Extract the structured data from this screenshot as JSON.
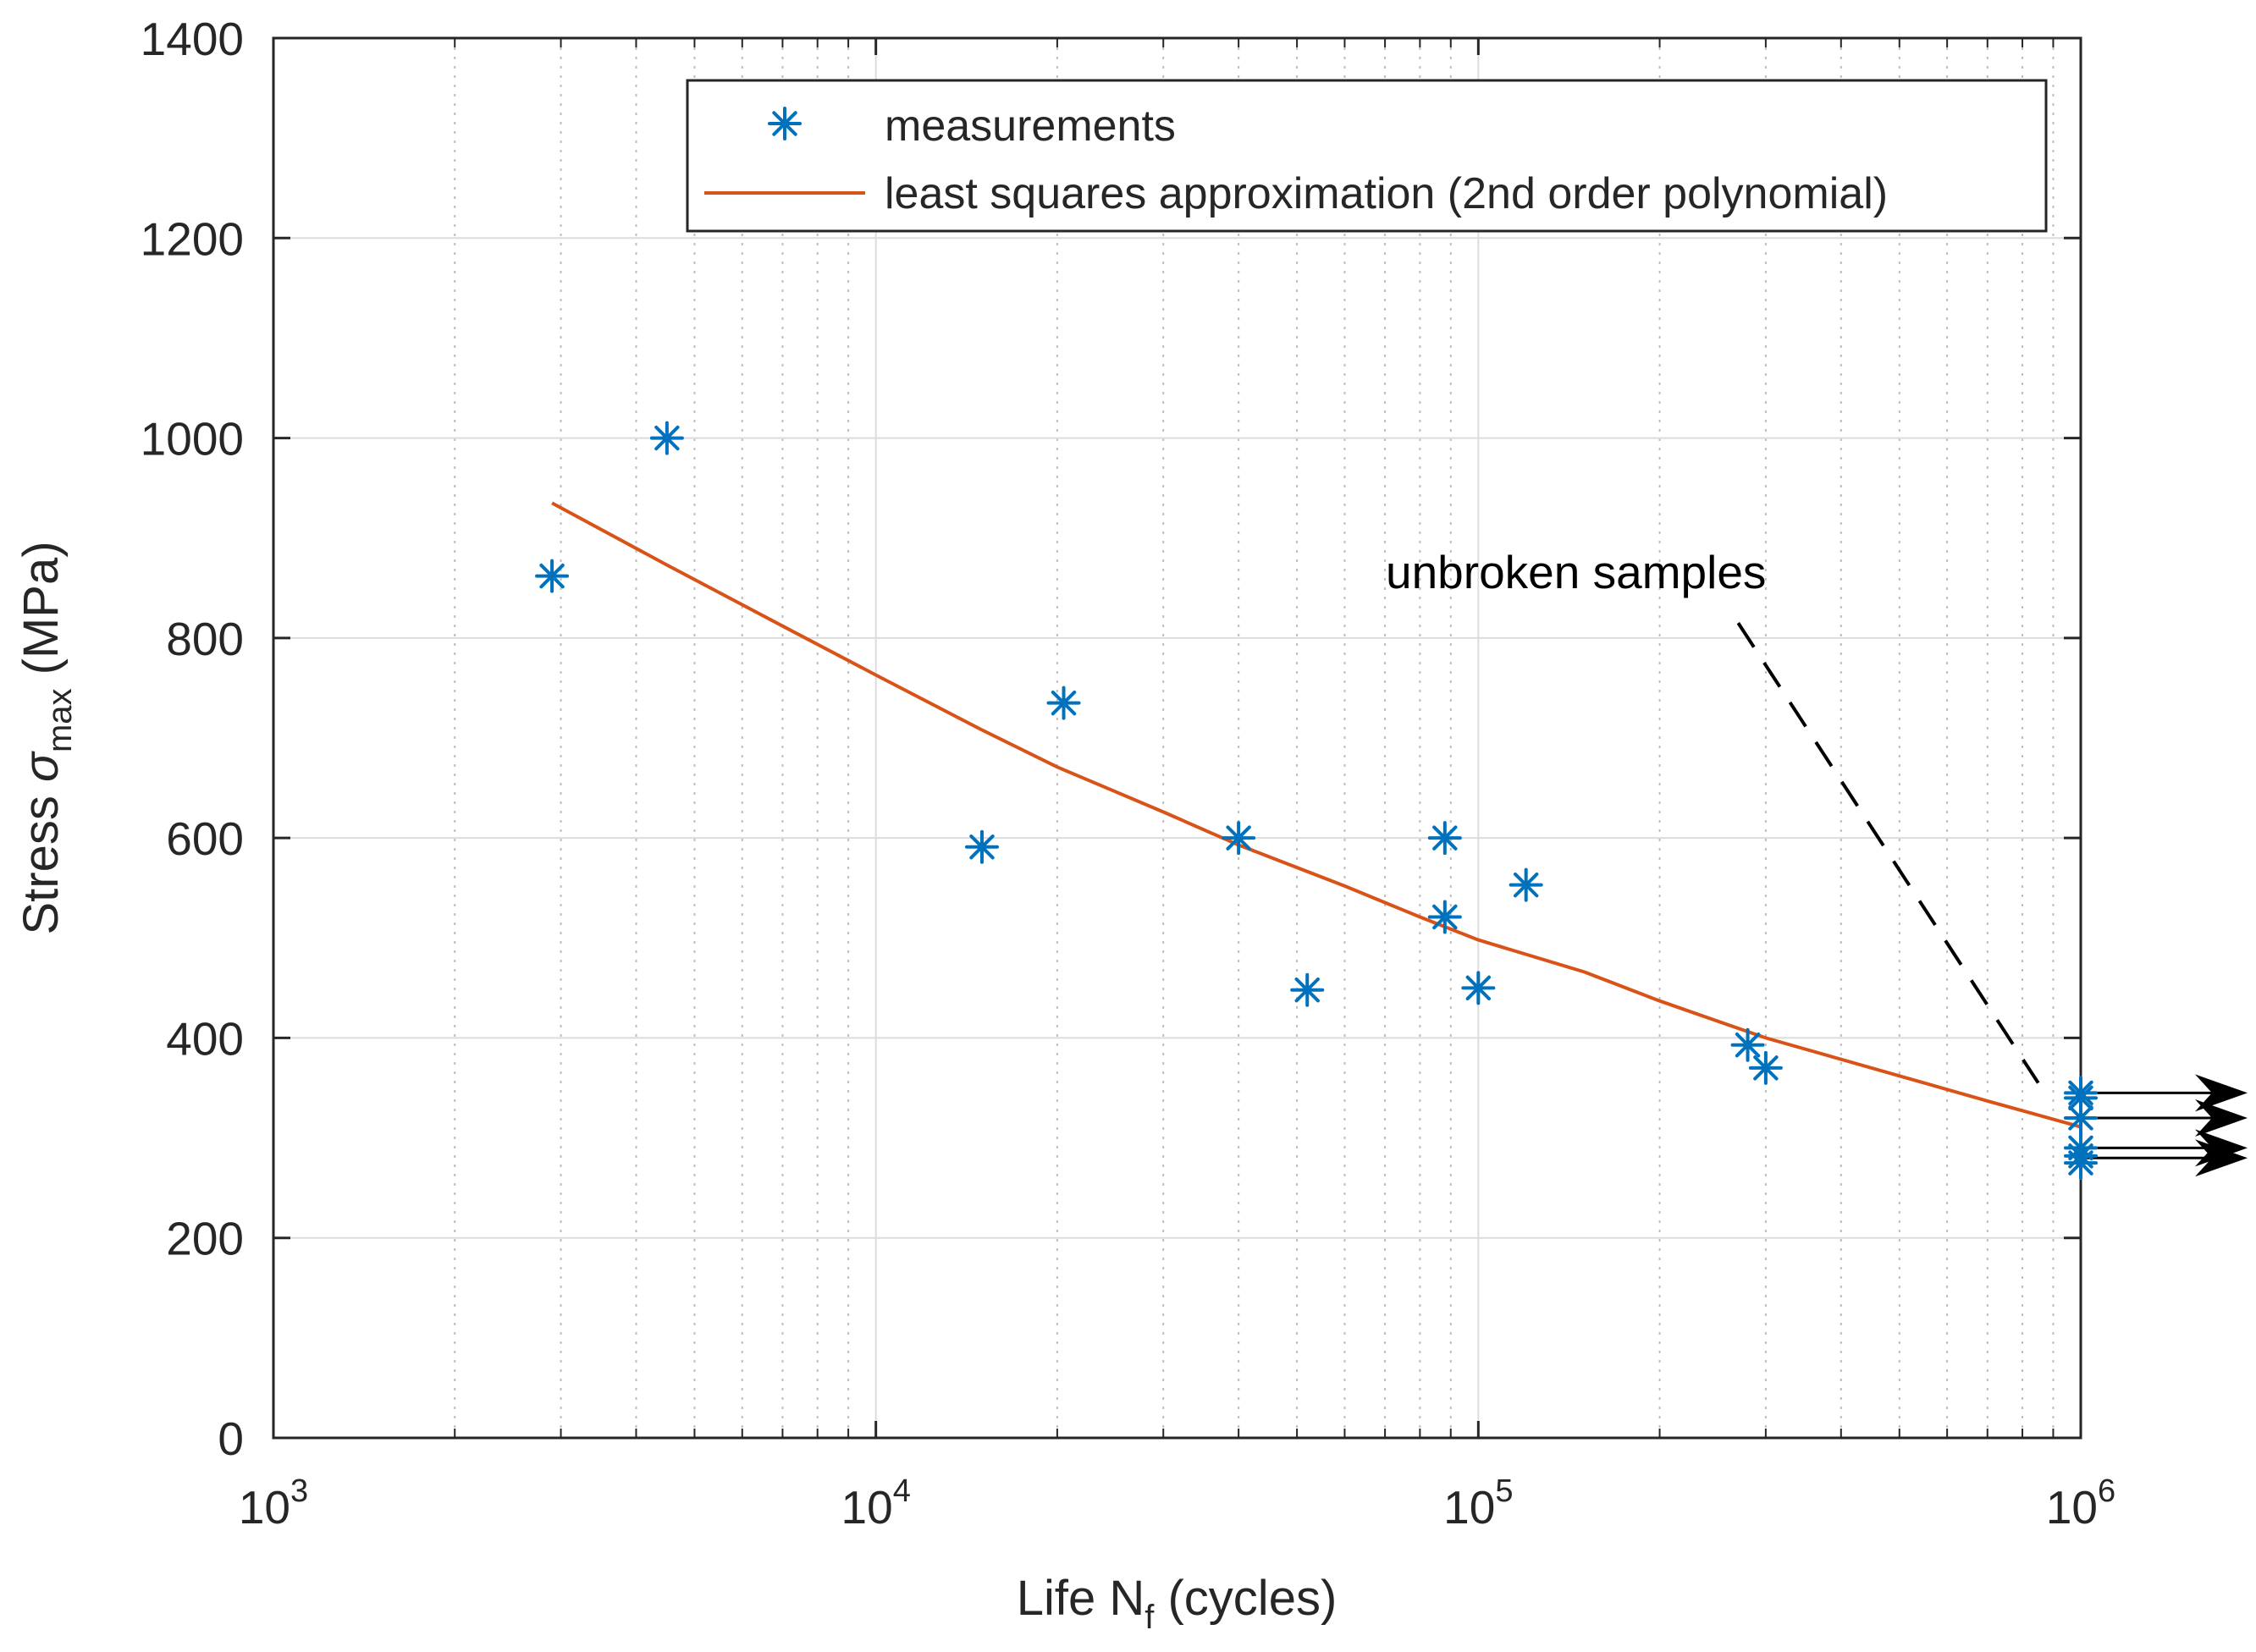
{
  "chart_data": {
    "type": "scatter",
    "title": "",
    "xlabel": {
      "main": "Life N",
      "subscript": "f",
      "suffix": " (cycles)"
    },
    "ylabel": {
      "main": "Stress ",
      "symbol": "σ",
      "subscript": "max",
      "suffix": " (MPa)"
    },
    "xscale": "log",
    "xlim": [
      1000,
      1000000
    ],
    "ylim": [
      0,
      1400
    ],
    "xticks": [
      {
        "base": "10",
        "exp": "3",
        "value": 1000
      },
      {
        "base": "10",
        "exp": "4",
        "value": 10000
      },
      {
        "base": "10",
        "exp": "5",
        "value": 100000
      },
      {
        "base": "10",
        "exp": "6",
        "value": 1000000
      }
    ],
    "yticks": [
      "0",
      "200",
      "400",
      "600",
      "800",
      "1000",
      "1200",
      "1400"
    ],
    "grid": true,
    "legend_position": "top-right",
    "series": [
      {
        "name": "measurements",
        "kind": "markers",
        "marker": "asterisk",
        "color": "#0072BD",
        "points": [
          [
            2900,
            862
          ],
          [
            4500,
            1000
          ],
          [
            15000,
            591
          ],
          [
            20500,
            735
          ],
          [
            40000,
            600
          ],
          [
            52000,
            448
          ],
          [
            88000,
            600
          ],
          [
            88000,
            521
          ],
          [
            100000,
            450
          ],
          [
            120000,
            553
          ],
          [
            280000,
            393
          ],
          [
            300000,
            370
          ],
          [
            1000000,
            345
          ],
          [
            1000000,
            340
          ],
          [
            1000000,
            320
          ],
          [
            1000000,
            290
          ],
          [
            1000000,
            282
          ],
          [
            1000000,
            275
          ]
        ]
      },
      {
        "name": "least squares approximation (2nd order polynomial)",
        "kind": "line",
        "color": "#D95319",
        "points": [
          [
            2900,
            935
          ],
          [
            4500,
            873
          ],
          [
            7000,
            812
          ],
          [
            10000,
            763
          ],
          [
            15000,
            708
          ],
          [
            20000,
            671
          ],
          [
            30000,
            626
          ],
          [
            40000,
            593
          ],
          [
            60000,
            552
          ],
          [
            80000,
            521
          ],
          [
            100000,
            498
          ],
          [
            150000,
            466
          ],
          [
            200000,
            437
          ],
          [
            300000,
            400
          ],
          [
            500000,
            362
          ],
          [
            700000,
            337
          ],
          [
            1000000,
            311
          ]
        ]
      }
    ],
    "annotations": [
      {
        "text": "unbroken samples",
        "line_from": [
          270000,
          815
        ],
        "line_to": [
          850000,
          355
        ],
        "style": "dashed",
        "color": "#000000"
      }
    ],
    "runout_arrows": {
      "from_x": 1000000,
      "y_values": [
        345,
        320,
        290,
        280
      ]
    }
  }
}
